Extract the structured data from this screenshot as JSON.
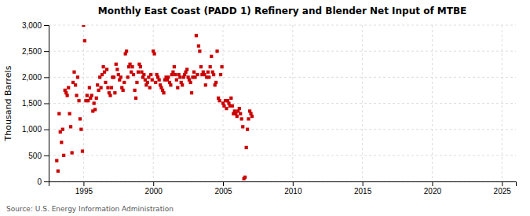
{
  "chart_data": {
    "type": "scatter",
    "title": "Monthly East Coast (PADD 1) Refinery and Blender Net Input of MTBE",
    "ylabel": "Thousand Barrels",
    "source": "Source: U.S. Energy Information Administration",
    "color": "#cc0000",
    "marker": "square",
    "grid": true,
    "xlim": [
      1992.5,
      2026
    ],
    "ylim": [
      0,
      3000
    ],
    "xticks": [
      1995,
      2000,
      2005,
      2010,
      2015,
      2020,
      2025
    ],
    "yticks": [
      0,
      500,
      {
        "value": 1000,
        "label": "1,000"
      },
      {
        "value": 1500,
        "label": "1,500"
      },
      {
        "value": 2000,
        "label": "2,000"
      },
      {
        "value": 2500,
        "label": "2,500"
      },
      {
        "value": 3000,
        "label": "3,000"
      }
    ],
    "x": [
      1993.08,
      1993.17,
      1993.25,
      1993.33,
      1993.42,
      1993.5,
      1993.58,
      1993.67,
      1993.75,
      1993.83,
      1993.92,
      1994.0,
      1994.08,
      1994.17,
      1994.25,
      1994.33,
      1994.42,
      1994.5,
      1994.58,
      1994.67,
      1994.75,
      1994.83,
      1994.92,
      1995.0,
      1995.08,
      1995.17,
      1995.25,
      1995.33,
      1995.42,
      1995.5,
      1995.58,
      1995.67,
      1995.75,
      1995.83,
      1995.92,
      1996.0,
      1996.08,
      1996.17,
      1996.25,
      1996.33,
      1996.42,
      1996.5,
      1996.58,
      1996.67,
      1996.75,
      1996.83,
      1996.92,
      1997.0,
      1997.08,
      1997.17,
      1997.25,
      1997.33,
      1997.42,
      1997.5,
      1997.58,
      1997.67,
      1997.75,
      1997.83,
      1997.92,
      1998.0,
      1998.08,
      1998.17,
      1998.25,
      1998.33,
      1998.42,
      1998.5,
      1998.58,
      1998.67,
      1998.75,
      1998.83,
      1998.92,
      1999.0,
      1999.08,
      1999.17,
      1999.25,
      1999.33,
      1999.42,
      1999.5,
      1999.58,
      1999.67,
      1999.75,
      1999.83,
      1999.92,
      2000.0,
      2000.08,
      2000.17,
      2000.25,
      2000.33,
      2000.42,
      2000.5,
      2000.58,
      2000.67,
      2000.75,
      2000.83,
      2000.92,
      2001.0,
      2001.08,
      2001.17,
      2001.25,
      2001.33,
      2001.42,
      2001.5,
      2001.58,
      2001.67,
      2001.75,
      2001.83,
      2001.92,
      2002.0,
      2002.08,
      2002.17,
      2002.25,
      2002.33,
      2002.42,
      2002.5,
      2002.58,
      2002.67,
      2002.75,
      2002.83,
      2002.92,
      2003.0,
      2003.08,
      2003.17,
      2003.25,
      2003.33,
      2003.42,
      2003.5,
      2003.58,
      2003.67,
      2003.75,
      2003.83,
      2003.92,
      2004.0,
      2004.08,
      2004.17,
      2004.25,
      2004.33,
      2004.42,
      2004.5,
      2004.58,
      2004.67,
      2004.75,
      2004.83,
      2004.92,
      2005.0,
      2005.08,
      2005.17,
      2005.25,
      2005.33,
      2005.42,
      2005.5,
      2005.58,
      2005.67,
      2005.75,
      2005.83,
      2005.92,
      2006.0,
      2006.08,
      2006.17,
      2006.25,
      2006.33,
      2006.42,
      2006.5,
      2006.58,
      2006.67,
      2006.75,
      2006.83,
      2006.92,
      2007.0,
      2007.08
    ],
    "values": [
      400,
      200,
      1300,
      950,
      750,
      1000,
      500,
      1750,
      1700,
      1650,
      1800,
      1300,
      1050,
      550,
      1900,
      2100,
      1850,
      1650,
      2000,
      1550,
      1200,
      1000,
      580,
      3000,
      2700,
      1550,
      1650,
      1550,
      1800,
      1600,
      1650,
      1350,
      1500,
      1380,
      1600,
      1850,
      1750,
      2000,
      1800,
      2050,
      2200,
      2100,
      1900,
      2150,
      1800,
      1700,
      1650,
      1800,
      2000,
      2000,
      1700,
      2250,
      2150,
      2050,
      1950,
      2000,
      1800,
      1750,
      1900,
      2450,
      2500,
      2000,
      2200,
      2250,
      2100,
      2200,
      2050,
      1750,
      1600,
      1900,
      2100,
      2250,
      2200,
      2100,
      2000,
      2050,
      1950,
      1850,
      1900,
      2000,
      1800,
      2050,
      1950,
      2500,
      2450,
      1900,
      2050,
      2000,
      1950,
      1850,
      1800,
      1750,
      1700,
      1950,
      2000,
      1950,
      2000,
      1900,
      1850,
      2050,
      2100,
      2200,
      2050,
      1950,
      1800,
      2050,
      2000,
      1900,
      1850,
      2000,
      2050,
      2100,
      2150,
      2000,
      1950,
      1900,
      1700,
      2000,
      2100,
      2000,
      2800,
      2050,
      2600,
      2500,
      2200,
      2050,
      2100,
      2050,
      1850,
      2000,
      2100,
      2000,
      2200,
      2400,
      2100,
      2050,
      1850,
      1900,
      2500,
      1600,
      1550,
      2050,
      2200,
      1500,
      1450,
      1550,
      1400,
      1550,
      1500,
      1450,
      1600,
      1450,
      1300,
      1350,
      1300,
      1250,
      1350,
      1400,
      1300,
      1200,
      1050,
      55,
      80,
      650,
      1000,
      1200,
      1350,
      1300,
      1250
    ]
  }
}
